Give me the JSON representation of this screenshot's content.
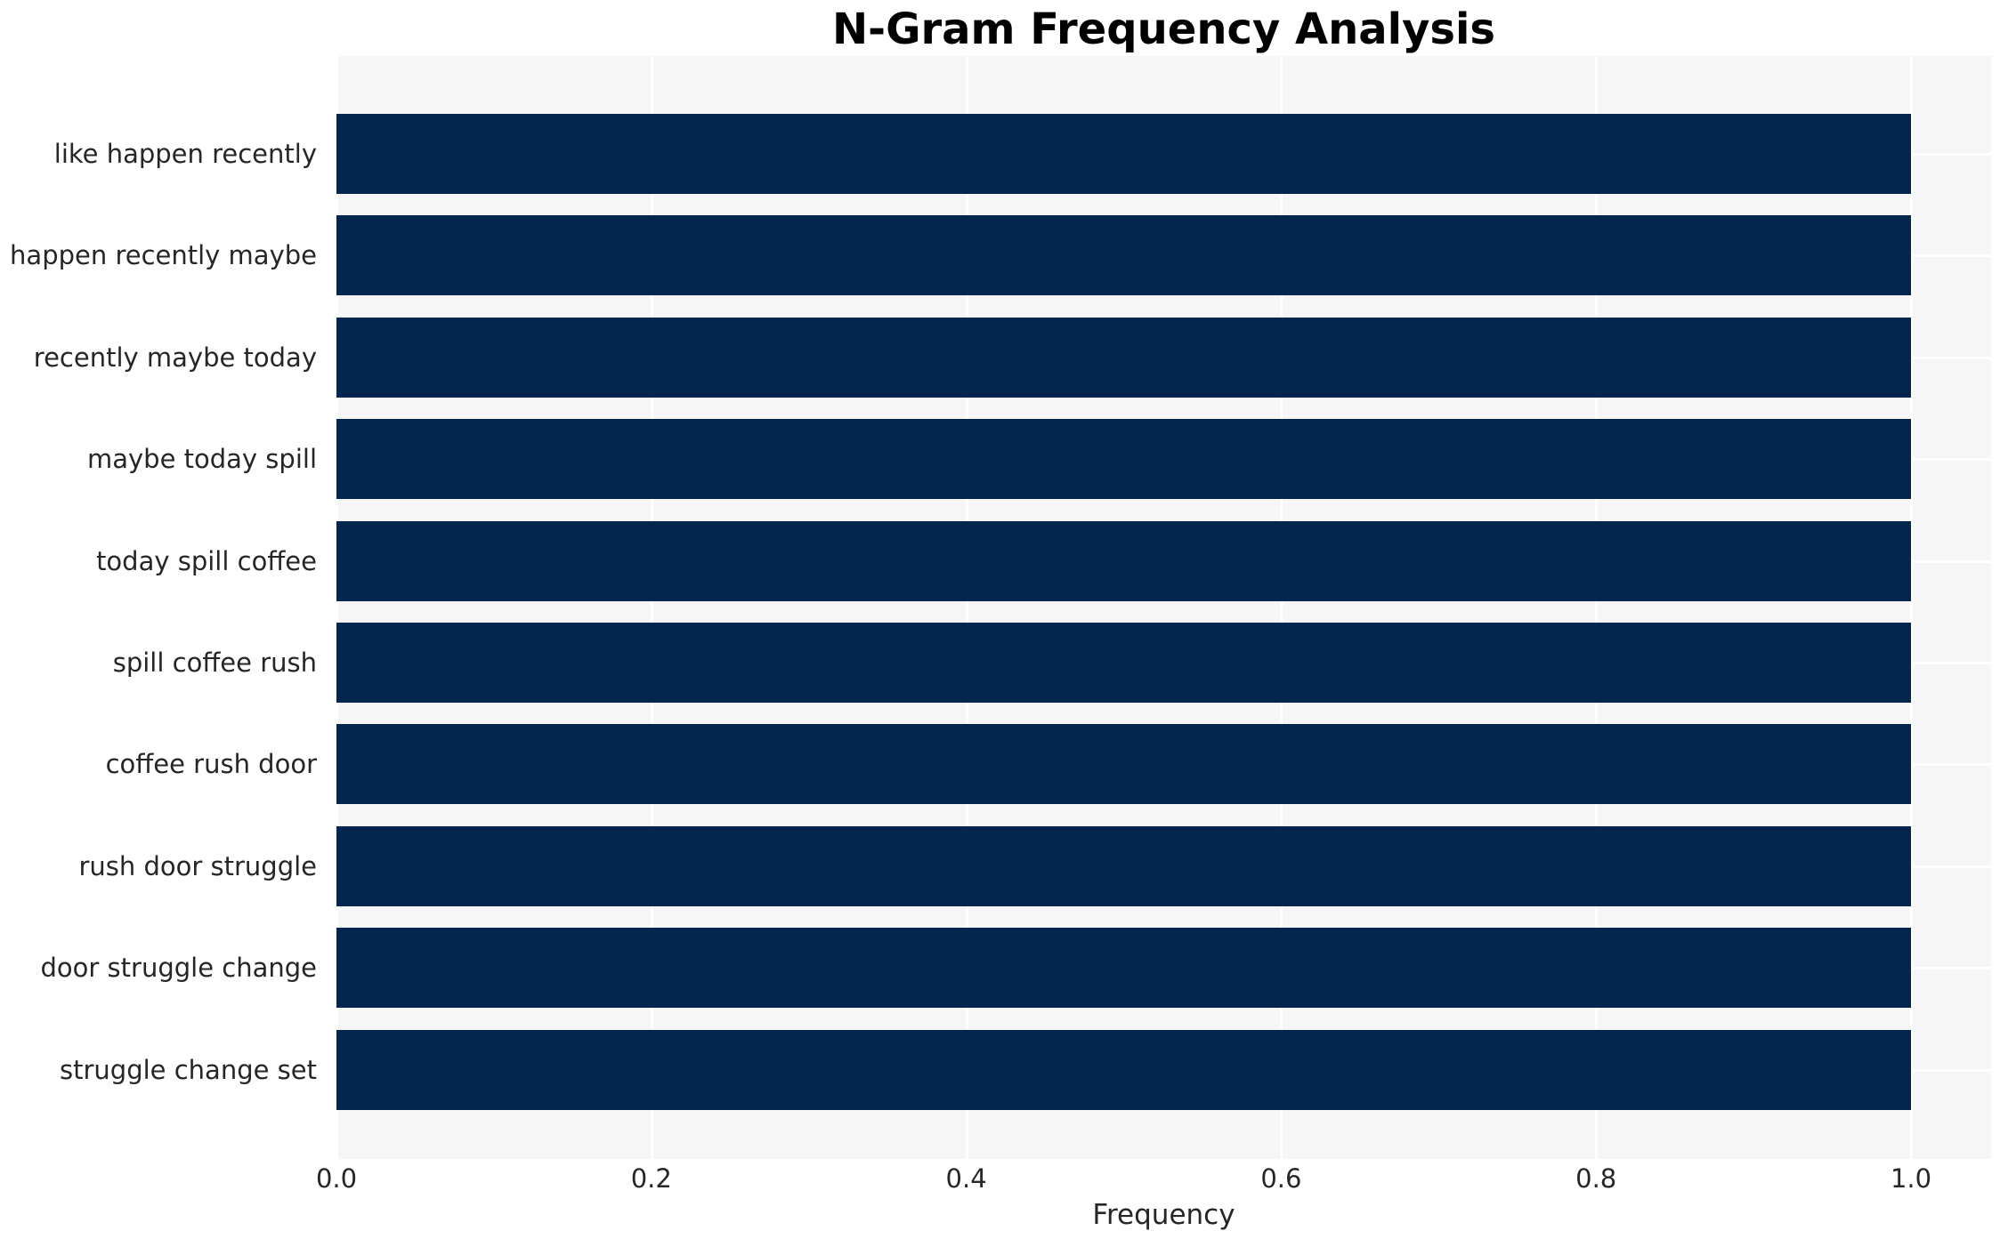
{
  "chart_data": {
    "type": "bar",
    "orientation": "horizontal",
    "title": "N-Gram Frequency Analysis",
    "xlabel": "Frequency",
    "ylabel": "",
    "categories": [
      "like happen recently",
      "happen recently maybe",
      "recently maybe today",
      "maybe today spill",
      "today spill coffee",
      "spill coffee rush",
      "coffee rush door",
      "rush door struggle",
      "door struggle change",
      "struggle change set"
    ],
    "values": [
      1.0,
      1.0,
      1.0,
      1.0,
      1.0,
      1.0,
      1.0,
      1.0,
      1.0,
      1.0
    ],
    "x_ticks": [
      0.0,
      0.2,
      0.4,
      0.6,
      0.8,
      1.0
    ],
    "x_tick_labels": [
      "0.0",
      "0.2",
      "0.4",
      "0.6",
      "0.8",
      "1.0"
    ],
    "xlim": [
      0,
      1.051
    ],
    "grid": true,
    "legend": false,
    "colors": {
      "bar": "#03254e",
      "plot_background": "#f6f6f7",
      "gridline": "#ffffff",
      "tick_text": "#262626",
      "title_text": "#000000"
    }
  }
}
